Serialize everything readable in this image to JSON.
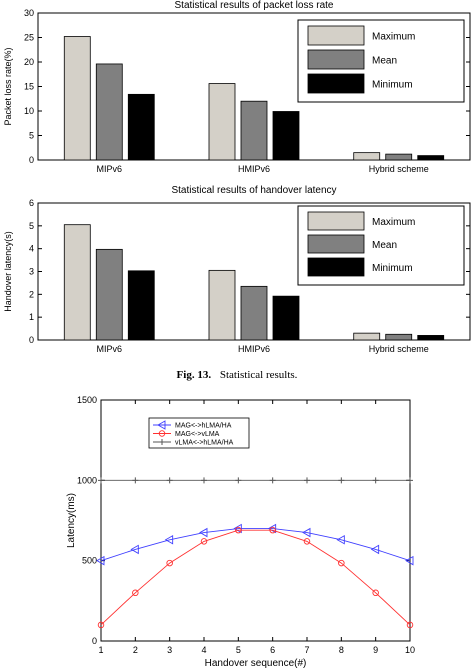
{
  "caption": {
    "label": "Fig. 13.",
    "text": "Statistical results."
  },
  "legend_fill": {
    "Maximum": "#d4d0c8",
    "Mean": "#808080",
    "Minimum": "#000000"
  },
  "line_colors": {
    "MAG<->hLMA/HA": "#4040ff",
    "MAG<->vLMA": "#ff3030",
    "vLMA<->hLMA/HA": "#555555"
  },
  "chart_data": [
    {
      "type": "bar",
      "title": "Statistical results of packet loss rate",
      "ylabel": "Packet loss rate(%)",
      "xlabel": "",
      "ylim": [
        0,
        30
      ],
      "yticks": [
        0,
        5,
        10,
        15,
        20,
        25,
        30
      ],
      "categories": [
        "MIPv6",
        "HMIPv6",
        "Hybrid scheme"
      ],
      "series": [
        {
          "name": "Maximum",
          "values": [
            25.2,
            15.6,
            1.5
          ]
        },
        {
          "name": "Mean",
          "values": [
            19.6,
            12.0,
            1.2
          ]
        },
        {
          "name": "Minimum",
          "values": [
            13.4,
            9.9,
            0.9
          ]
        }
      ],
      "legend": "top-right",
      "grid": false
    },
    {
      "type": "bar",
      "title": "Statistical results of handover latency",
      "ylabel": "Handover latency(s)",
      "xlabel": "",
      "ylim": [
        0,
        6
      ],
      "yticks": [
        0,
        1,
        2,
        3,
        4,
        5,
        6
      ],
      "categories": [
        "MIPv6",
        "HMIPv6",
        "Hybrid scheme"
      ],
      "series": [
        {
          "name": "Maximum",
          "values": [
            5.05,
            3.05,
            0.3
          ]
        },
        {
          "name": "Mean",
          "values": [
            3.97,
            2.35,
            0.25
          ]
        },
        {
          "name": "Minimum",
          "values": [
            3.03,
            1.92,
            0.2
          ]
        }
      ],
      "legend": "top-right",
      "grid": false
    },
    {
      "type": "line",
      "title": "",
      "xlabel": "Handover sequence(#)",
      "ylabel": "Latency(ms)",
      "xlim": [
        1,
        10
      ],
      "ylim": [
        0,
        1500
      ],
      "xticks": [
        1,
        2,
        3,
        4,
        5,
        6,
        7,
        8,
        9,
        10
      ],
      "yticks": [
        0,
        500,
        1000,
        1500
      ],
      "x": [
        1,
        2,
        3,
        4,
        5,
        6,
        7,
        8,
        9,
        10
      ],
      "series": [
        {
          "name": "MAG<->hLMA/HA",
          "marker": "triangle-left",
          "values": [
            500,
            570,
            630,
            675,
            700,
            700,
            675,
            630,
            570,
            500
          ]
        },
        {
          "name": "MAG<->vLMA",
          "marker": "circle",
          "values": [
            100,
            300,
            485,
            620,
            690,
            690,
            620,
            485,
            300,
            100
          ]
        },
        {
          "name": "vLMA<->hLMA/HA",
          "marker": "plus",
          "values": [
            1000,
            1000,
            1000,
            1000,
            1000,
            1000,
            1000,
            1000,
            1000,
            1000
          ]
        }
      ],
      "legend": "top-left",
      "grid": false
    }
  ]
}
